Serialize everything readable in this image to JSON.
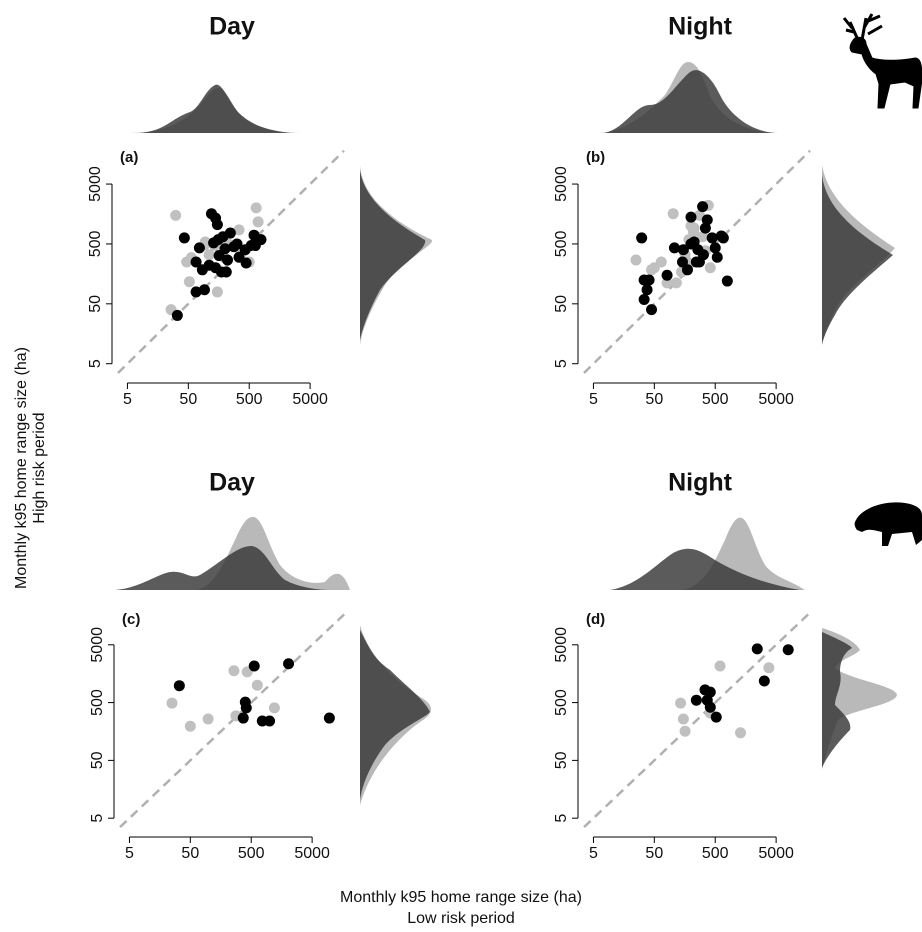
{
  "figure": {
    "y_label": [
      "Monthly k95 home range size (ha)",
      "High risk period"
    ],
    "x_label": [
      "Monthly k95 home range size (ha)",
      "Low risk period"
    ]
  },
  "chart_data": [
    {
      "type": "scatter",
      "title": "Day",
      "panel_label": "(a)",
      "log_x": true,
      "log_y": true,
      "xlim": [
        3.5,
        18000
      ],
      "ylim": [
        3,
        20000
      ],
      "xticks": [
        5,
        50,
        500,
        5000
      ],
      "yticks": [
        5,
        50,
        500,
        5000
      ],
      "series": [
        {
          "color": "#c0c0c0",
          "x": [
            26,
            31,
            47,
            56,
            92,
            95,
            135,
            110,
            150,
            195,
            340,
            395,
            650,
            700,
            500,
            225,
            52
          ],
          "values": [
            40,
            1500,
            250,
            295,
            480,
            540,
            470,
            330,
            79,
            295,
            860,
            370,
            2000,
            1170,
            250,
            500,
            117
          ]
        },
        {
          "color": "#000000",
          "x": [
            43,
            33,
            67,
            85,
            67,
            120,
            140,
            150,
            130,
            155,
            185,
            110,
            140,
            175,
            210,
            200,
            245,
            315,
            430,
            340,
            445,
            540,
            630,
            780,
            600,
            92,
            160,
            76,
            280,
            220
          ],
          "values": [
            630,
            32,
            250,
            185,
            79,
            1600,
            1350,
            1050,
            520,
            590,
            660,
            220,
            200,
            170,
            170,
            415,
            760,
            500,
            400,
            300,
            240,
            470,
            470,
            590,
            700,
            86,
            320,
            430,
            450,
            270
          ]
        }
      ]
    },
    {
      "type": "scatter",
      "title": "Night",
      "panel_label": "(b)",
      "log_x": true,
      "log_y": true,
      "xlim": [
        3.5,
        18000
      ],
      "ylim": [
        3,
        20000
      ],
      "xticks": [
        5,
        50,
        500,
        5000
      ],
      "yticks": [
        5,
        50,
        500,
        5000
      ],
      "series": [
        {
          "color": "#c0c0c0",
          "x": [
            25,
            45,
            50,
            65,
            81,
            102,
            115,
            140,
            160,
            175,
            185,
            220,
            225,
            310,
            345,
            385,
            415,
            200,
            275
          ],
          "values": [
            270,
            185,
            200,
            250,
            112,
            1600,
            112,
            170,
            330,
            250,
            590,
            790,
            920,
            660,
            385,
            2200,
            200,
            1000,
            1500
          ]
        },
        {
          "color": "#000000",
          "x": [
            31,
            34,
            41,
            34,
            45,
            38,
            81,
            107,
            145,
            175,
            200,
            225,
            200,
            260,
            245,
            320,
            345,
            310,
            370,
            445,
            500,
            540,
            630,
            680,
            790,
            150,
            275
          ],
          "values": [
            630,
            125,
            125,
            59,
            40,
            86,
            150,
            430,
            250,
            185,
            1400,
            540,
            500,
            400,
            250,
            330,
            920,
            2100,
            1260,
            630,
            430,
            300,
            680,
            630,
            120,
            400,
            250
          ]
        }
      ]
    },
    {
      "type": "scatter",
      "title": "Day",
      "panel_label": "(c)",
      "log_x": true,
      "log_y": true,
      "xlim": [
        3.5,
        18000
      ],
      "ylim": [
        3,
        20000
      ],
      "xticks": [
        5,
        50,
        500,
        5000
      ],
      "yticks": [
        5,
        50,
        500,
        5000
      ],
      "series": [
        {
          "color": "#c0c0c0",
          "x": [
            25,
            50,
            98,
            260,
            280,
            430,
            630,
            1200
          ],
          "values": [
            490,
            195,
            260,
            1780,
            295,
            1700,
            1000,
            405
          ]
        },
        {
          "color": "#000000",
          "x": [
            33,
            370,
            400,
            415,
            560,
            760,
            1000,
            2050,
            9600
          ],
          "values": [
            980,
            270,
            510,
            405,
            2150,
            240,
            240,
            2350,
            270
          ]
        }
      ]
    },
    {
      "type": "scatter",
      "title": "Night",
      "panel_label": "(d)",
      "log_x": true,
      "log_y": true,
      "xlim": [
        3.5,
        18000
      ],
      "ylim": [
        3,
        20000
      ],
      "xticks": [
        5,
        50,
        500,
        5000
      ],
      "yticks": [
        5,
        50,
        500,
        5000
      ],
      "series": [
        {
          "color": "#c0c0c0",
          "x": [
            135,
            150,
            160,
            415,
            600,
            1300,
            3800
          ],
          "values": [
            490,
            260,
            160,
            330,
            2150,
            150,
            2000
          ]
        },
        {
          "color": "#000000",
          "x": [
            245,
            340,
            415,
            370,
            415,
            520,
            2450,
            3200,
            7900
          ],
          "values": [
            550,
            830,
            760,
            550,
            415,
            280,
            4250,
            1180,
            4100
          ]
        }
      ]
    }
  ]
}
